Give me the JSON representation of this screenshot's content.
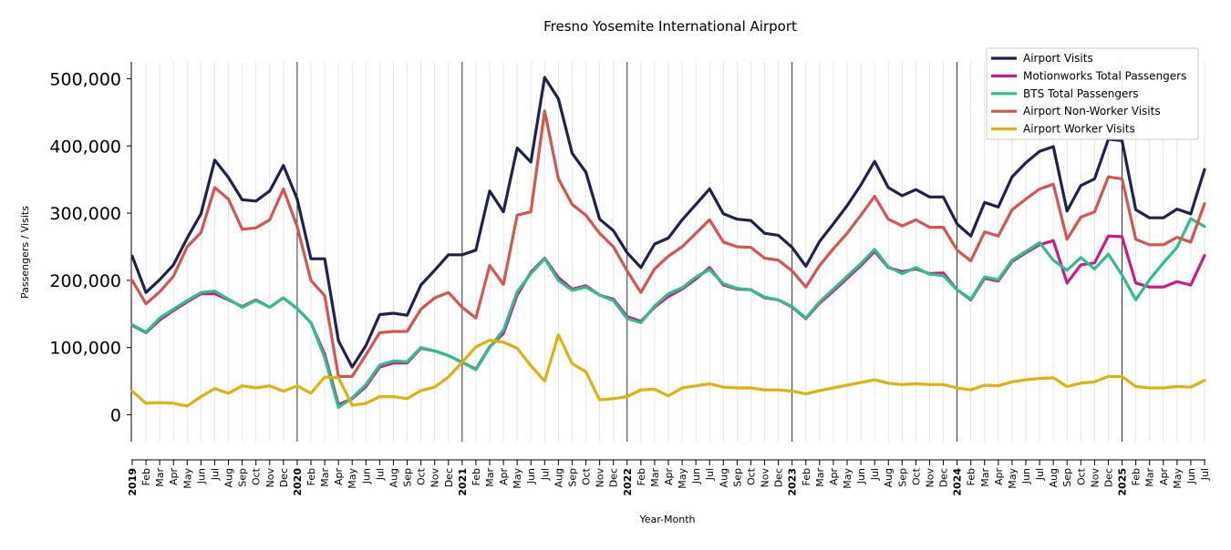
{
  "chart_data": {
    "type": "line",
    "title": "Fresno Yosemite International Airport",
    "xlabel": "Year-Month",
    "ylabel": "Passengers / Visits",
    "ylim": [
      -40000,
      525000
    ],
    "yticks": [
      0,
      100000,
      200000,
      300000,
      400000,
      500000
    ],
    "ytick_labels": [
      "0",
      "100,000",
      "200,000",
      "300,000",
      "400,000",
      "500,000"
    ],
    "grid": "vertical lines at each month, darker lines at each January",
    "legend_position": "top-right",
    "x": [
      "2019",
      "Feb",
      "Mar",
      "Apr",
      "May",
      "Jun",
      "Jul",
      "Aug",
      "Sep",
      "Oct",
      "Nov",
      "Dec",
      "2020",
      "Feb",
      "Mar",
      "Apr",
      "May",
      "Jun",
      "Jul",
      "Aug",
      "Sep",
      "Oct",
      "Nov",
      "Dec",
      "2021",
      "Feb",
      "Mar",
      "Apr",
      "May",
      "Jun",
      "Jul",
      "Aug",
      "Sep",
      "Oct",
      "Nov",
      "Dec",
      "2022",
      "Feb",
      "Mar",
      "Apr",
      "May",
      "Jun",
      "Jul",
      "Aug",
      "Sep",
      "Oct",
      "Nov",
      "Dec",
      "2023",
      "Feb",
      "Mar",
      "Apr",
      "May",
      "Jun",
      "Jul",
      "Aug",
      "Sep",
      "Oct",
      "Nov",
      "Dec",
      "2024",
      "Feb",
      "Mar",
      "Apr",
      "May",
      "Jun",
      "Jul",
      "Aug",
      "Sep",
      "Oct",
      "Nov",
      "Dec",
      "2025",
      "Feb",
      "Mar",
      "Apr",
      "May",
      "Jun",
      "Jul"
    ],
    "x_bold": [
      "2019",
      "2020",
      "2021",
      "2022",
      "2023",
      "2024",
      "2025"
    ],
    "series": [
      {
        "name": "Airport Visits",
        "color": "#1f2151",
        "values": [
          236000,
          182000,
          201000,
          223000,
          263000,
          299000,
          379000,
          353000,
          320000,
          318000,
          333000,
          371000,
          321000,
          232000,
          232000,
          110000,
          71000,
          103000,
          149000,
          151000,
          148000,
          193000,
          215000,
          238000,
          238000,
          245000,
          333000,
          302000,
          397000,
          376000,
          502000,
          470000,
          389000,
          361000,
          291000,
          274000,
          241000,
          219000,
          254000,
          263000,
          290000,
          313000,
          336000,
          299000,
          291000,
          289000,
          270000,
          267000,
          249000,
          221000,
          258000,
          284000,
          311000,
          342000,
          377000,
          338000,
          326000,
          335000,
          324000,
          324000,
          284000,
          266000,
          316000,
          309000,
          354000,
          375000,
          392000,
          399000,
          303000,
          341000,
          351000,
          410000,
          408000,
          305000,
          293000,
          293000,
          306000,
          299000,
          365000
        ]
      },
      {
        "name": "Motionworks Total Passengers",
        "color": "#d1188a",
        "values": [
          133000,
          122000,
          141000,
          155000,
          168000,
          180000,
          180000,
          171000,
          161000,
          171000,
          160000,
          174000,
          158000,
          137000,
          90000,
          15000,
          24000,
          42000,
          71000,
          77000,
          77000,
          99000,
          95000,
          88000,
          78000,
          68000,
          101000,
          121000,
          178000,
          212000,
          233000,
          204000,
          187000,
          192000,
          178000,
          172000,
          146000,
          139000,
          160000,
          176000,
          187000,
          202000,
          219000,
          193000,
          187000,
          186000,
          174000,
          171000,
          160000,
          143000,
          166000,
          184000,
          203000,
          222000,
          243000,
          219000,
          213000,
          217000,
          210000,
          211000,
          186000,
          171000,
          203000,
          199000,
          228000,
          241000,
          253000,
          259000,
          196000,
          223000,
          226000,
          266000,
          265000,
          196000,
          190000,
          190000,
          198000,
          193000,
          237000
        ]
      },
      {
        "name": "BTS Total Passengers",
        "color": "#2dbf8e",
        "values": [
          134000,
          123000,
          144000,
          157000,
          170000,
          182000,
          184000,
          172000,
          160000,
          170000,
          160000,
          174000,
          158000,
          137000,
          85000,
          11000,
          25000,
          45000,
          74000,
          80000,
          79000,
          100000,
          95000,
          88000,
          78000,
          67000,
          100000,
          126000,
          183000,
          210000,
          232000,
          200000,
          185000,
          190000,
          178000,
          170000,
          143000,
          137000,
          162000,
          180000,
          189000,
          205000,
          216000,
          195000,
          188000,
          186000,
          175000,
          171000,
          161000,
          144000,
          168000,
          187000,
          206000,
          225000,
          246000,
          220000,
          210000,
          219000,
          209000,
          207000,
          186000,
          172000,
          205000,
          201000,
          230000,
          243000,
          256000,
          230000,
          215000,
          234000,
          217000,
          239000,
          208000,
          171000,
          201000,
          226000,
          249000,
          292000,
          280000
        ]
      },
      {
        "name": "Airport Non-Worker Visits",
        "color": "#d9534f",
        "values": [
          200000,
          165000,
          183000,
          206000,
          250000,
          271000,
          338000,
          321000,
          276000,
          278000,
          290000,
          336000,
          280000,
          200000,
          177000,
          57000,
          57000,
          89000,
          122000,
          124000,
          124000,
          157000,
          174000,
          182000,
          160000,
          144000,
          222000,
          194000,
          297000,
          302000,
          452000,
          351000,
          313000,
          297000,
          270000,
          250000,
          214000,
          182000,
          217000,
          236000,
          250000,
          270000,
          290000,
          257000,
          250000,
          249000,
          233000,
          230000,
          214000,
          190000,
          222000,
          247000,
          270000,
          297000,
          325000,
          291000,
          281000,
          290000,
          279000,
          279000,
          245000,
          229000,
          272000,
          266000,
          305000,
          321000,
          336000,
          343000,
          261000,
          294000,
          302000,
          354000,
          351000,
          261000,
          253000,
          253000,
          264000,
          257000,
          314000
        ]
      },
      {
        "name": "Airport Worker Visits",
        "color": "#e0b20c",
        "values": [
          35000,
          17000,
          18000,
          17000,
          13000,
          27000,
          39000,
          32000,
          43000,
          40000,
          43000,
          35000,
          43000,
          32000,
          56000,
          55000,
          14000,
          17000,
          27000,
          27000,
          24000,
          36000,
          41000,
          56000,
          78000,
          101000,
          111000,
          108000,
          99000,
          73000,
          50000,
          119000,
          76000,
          64000,
          22000,
          24000,
          27000,
          37000,
          38000,
          28000,
          40000,
          43000,
          46000,
          41000,
          40000,
          40000,
          37000,
          37000,
          35000,
          31000,
          36000,
          40000,
          44000,
          48000,
          52000,
          47000,
          45000,
          46000,
          45000,
          45000,
          40000,
          37000,
          44000,
          43000,
          49000,
          52000,
          54000,
          55000,
          42000,
          47000,
          49000,
          57000,
          57000,
          42000,
          40000,
          40000,
          42000,
          41000,
          51000
        ]
      }
    ]
  }
}
